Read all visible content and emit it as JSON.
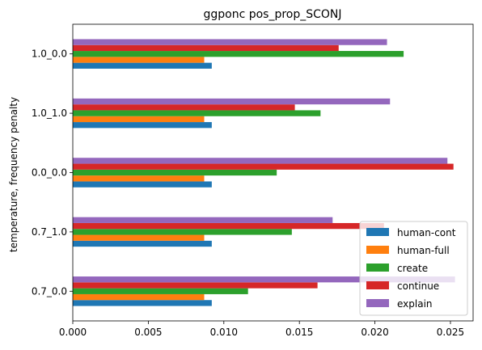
{
  "chart_data": {
    "type": "bar",
    "orientation": "horizontal",
    "title": "ggponc pos_prop_SCONJ",
    "xlabel": "",
    "ylabel": "temperature, frequency penalty",
    "categories": [
      "0.7_0.0",
      "0.7_1.0",
      "0.0_0.0",
      "1.0_1.0",
      "1.0_0.0"
    ],
    "xlim": [
      0,
      0.0265
    ],
    "xticks": [
      "0.000",
      "0.005",
      "0.010",
      "0.015",
      "0.020",
      "0.025"
    ],
    "grid": false,
    "legend_position": "lower-right",
    "series": [
      {
        "name": "human-cont",
        "color": "#1f77b4",
        "values": [
          0.0092,
          0.0092,
          0.0092,
          0.0092,
          0.0092
        ]
      },
      {
        "name": "human-full",
        "color": "#ff7f0e",
        "values": [
          0.0087,
          0.0087,
          0.0087,
          0.0087,
          0.0087
        ]
      },
      {
        "name": "create",
        "color": "#2ca02c",
        "values": [
          0.0116,
          0.0145,
          0.0135,
          0.0164,
          0.0219
        ]
      },
      {
        "name": "continue",
        "color": "#d62728",
        "values": [
          0.0162,
          0.0206,
          0.0252,
          0.0147,
          0.0176
        ]
      },
      {
        "name": "explain",
        "color": "#9467bd",
        "values": [
          0.0253,
          0.0172,
          0.0248,
          0.021,
          0.0208
        ]
      }
    ]
  }
}
